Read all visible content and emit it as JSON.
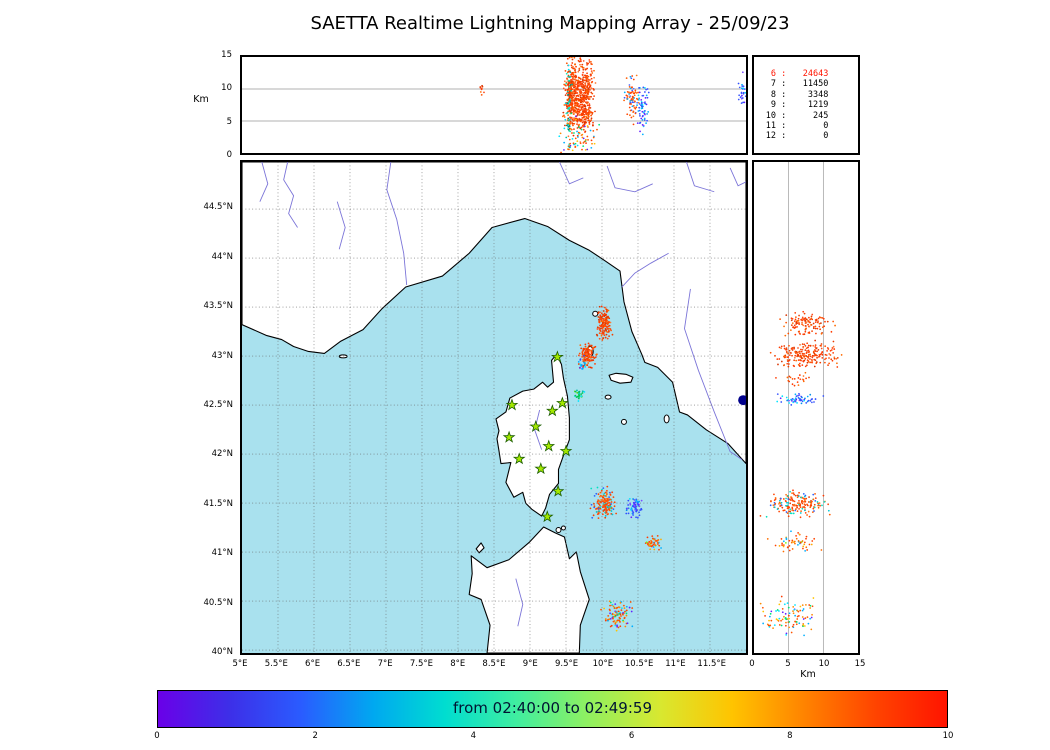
{
  "title": "SAETTA Realtime Lightning Mapping Array - 25/09/23",
  "axes": {
    "km_label": "Km",
    "alt_ticks": [
      "0",
      "5",
      "10",
      "15"
    ],
    "lat_ticks": [
      "44.5°N",
      "44°N",
      "43.5°N",
      "43°N",
      "42.5°N",
      "42°N",
      "41.5°N",
      "41°N",
      "40.5°N",
      "40°N"
    ],
    "lon_ticks": [
      "5°E",
      "5.5°E",
      "6°E",
      "6.5°E",
      "7°E",
      "7.5°E",
      "8°E",
      "8.5°E",
      "9°E",
      "9.5°E",
      "10°E",
      "10.5°E",
      "11°E",
      "11.5°E"
    ]
  },
  "legend": {
    "rows": [
      {
        "level": "6",
        "value": "24643",
        "color": "#ff1400"
      },
      {
        "level": "7",
        "value": "11450",
        "color": "#000000"
      },
      {
        "level": "8",
        "value": "3348",
        "color": "#000000"
      },
      {
        "level": "9",
        "value": "1219",
        "color": "#000000"
      },
      {
        "level": "10",
        "value": "245",
        "color": "#000000"
      },
      {
        "level": "11",
        "value": "0",
        "color": "#000000"
      },
      {
        "level": "12",
        "value": "0",
        "color": "#000000"
      }
    ]
  },
  "colorbar": {
    "label": "from 02:40:00 to 02:49:59",
    "label_color": "#001433",
    "ticks": [
      "0",
      "2",
      "4",
      "6",
      "8",
      "10"
    ],
    "gradient": [
      "#6a00e8",
      "#3d2fe8",
      "#2a5cff",
      "#00a8f0",
      "#00ddd0",
      "#40eea0",
      "#90f060",
      "#d8e830",
      "#ffc400",
      "#ff8400",
      "#ff4400",
      "#ff1400"
    ]
  },
  "map": {
    "sea_color": "#a9e1ee",
    "land_color": "#ffffff",
    "river_color": "#7b74d8",
    "station_color": "#a4e800",
    "station_edge": "#1a5c00"
  },
  "chart_data": {
    "type": "scatter",
    "axes": {
      "lon_range_deg_e": [
        5,
        12
      ],
      "lat_range_deg_n": [
        39.97,
        44.98
      ],
      "alt_range_km": [
        0,
        15
      ],
      "colorbar_value_range": [
        0,
        10
      ]
    },
    "palettes": {
      "hot": [
        "#ff3b00",
        "#ff5200",
        "#f04000",
        "#ff6a00",
        "#e83a00",
        "#ff4d1a",
        "#d93400",
        "#ff7a33"
      ],
      "hotcyan": [
        "#ff4400",
        "#ff5c00",
        "#f04000",
        "#ff7a1a",
        "#00c8d4",
        "#00e0c0",
        "#2962ff",
        "#ff3b00"
      ],
      "hotblue": [
        "#ff4400",
        "#ff5c00",
        "#ff7a1a",
        "#3d5afe",
        "#536dfe",
        "#00b0ff"
      ],
      "hotmix": [
        "#ff4400",
        "#ff6d00",
        "#ffab00",
        "#00b0ff",
        "#76ff03",
        "#ff3b00"
      ],
      "cool": [
        "#304ffe",
        "#3d5afe",
        "#00b0ff",
        "#651fff",
        "#00e5ff",
        "#7c4dff",
        "#0091ea"
      ],
      "teal": [
        "#00bfa5",
        "#1de9b6",
        "#00e5ff",
        "#00897b",
        "#00d0b0"
      ],
      "tealgreen": [
        "#00c853",
        "#64dd17",
        "#00bfa5",
        "#00e5ff",
        "#40e060"
      ],
      "mixed": [
        "#ff5500",
        "#ff8800",
        "#00b0ff",
        "#00e676",
        "#651fff",
        "#ffc400",
        "#00e5ff",
        "#ff3b00"
      ]
    },
    "top_clusters": [
      {
        "lon": 9.6,
        "slon": 0.055,
        "alt": 9.0,
        "salt": 2.6,
        "n": 420,
        "pal": "hot"
      },
      {
        "lon": 9.77,
        "slon": 0.05,
        "alt": 8.5,
        "salt": 2.8,
        "n": 360,
        "pal": "hot"
      },
      {
        "lon": 9.54,
        "slon": 0.018,
        "alt": 7.0,
        "salt": 3.5,
        "n": 55,
        "pal": "teal"
      },
      {
        "lon": 9.68,
        "slon": 0.13,
        "alt": 2.5,
        "salt": 1.6,
        "n": 70,
        "pal": "mixed"
      },
      {
        "lon": 10.42,
        "slon": 0.05,
        "alt": 8.6,
        "salt": 1.7,
        "n": 85,
        "pal": "hotblue"
      },
      {
        "lon": 10.56,
        "slon": 0.04,
        "alt": 7.4,
        "salt": 1.9,
        "n": 65,
        "pal": "cool"
      },
      {
        "lon": 8.33,
        "slon": 0.015,
        "alt": 10.0,
        "salt": 0.6,
        "n": 9,
        "pal": "hot"
      },
      {
        "lon": 11.95,
        "slon": 0.03,
        "alt": 9.5,
        "salt": 1.1,
        "n": 28,
        "pal": "cool"
      }
    ],
    "map_clusters": [
      {
        "lon": 10.03,
        "lat": 43.33,
        "slon": 0.045,
        "slat": 0.075,
        "n": 150,
        "pal": "hot"
      },
      {
        "lon": 9.8,
        "lat": 43.01,
        "slon": 0.05,
        "slat": 0.055,
        "n": 130,
        "pal": "hot"
      },
      {
        "lon": 9.73,
        "lat": 42.92,
        "slon": 0.03,
        "slat": 0.03,
        "n": 18,
        "pal": "cool"
      },
      {
        "lon": 9.67,
        "lat": 42.6,
        "slon": 0.045,
        "slat": 0.03,
        "n": 28,
        "pal": "tealgreen"
      },
      {
        "lon": 10.02,
        "lat": 41.5,
        "slon": 0.07,
        "slat": 0.07,
        "n": 160,
        "pal": "hotcyan"
      },
      {
        "lon": 10.45,
        "lat": 41.46,
        "slon": 0.055,
        "slat": 0.05,
        "n": 65,
        "pal": "cool"
      },
      {
        "lon": 10.7,
        "lat": 41.1,
        "slon": 0.05,
        "slat": 0.04,
        "n": 45,
        "pal": "hotmix"
      },
      {
        "lon": 10.22,
        "lat": 40.33,
        "slon": 0.1,
        "slat": 0.08,
        "n": 100,
        "pal": "mixed"
      }
    ],
    "right_clusters": [
      {
        "lat": 43.33,
        "slat": 0.05,
        "alt": 7.5,
        "salt": 1.7,
        "n": 120,
        "pal": "hot"
      },
      {
        "lat": 43.01,
        "slat": 0.06,
        "alt": 7.5,
        "salt": 2.0,
        "n": 210,
        "pal": "hot"
      },
      {
        "lat": 42.76,
        "slat": 0.03,
        "alt": 6.0,
        "salt": 1.2,
        "n": 22,
        "pal": "hot"
      },
      {
        "lat": 42.56,
        "slat": 0.03,
        "alt": 6.5,
        "salt": 1.4,
        "n": 55,
        "pal": "cool"
      },
      {
        "lat": 41.49,
        "slat": 0.055,
        "alt": 6.5,
        "salt": 2.0,
        "n": 180,
        "pal": "hotcyan"
      },
      {
        "lat": 41.1,
        "slat": 0.04,
        "alt": 6.0,
        "salt": 1.5,
        "n": 55,
        "pal": "hotmix"
      },
      {
        "lat": 40.34,
        "slat": 0.09,
        "alt": 5.0,
        "salt": 2.0,
        "n": 100,
        "pal": "mixed"
      }
    ],
    "stations_lonlat": [
      [
        9.38,
        42.99
      ],
      [
        8.75,
        42.5
      ],
      [
        9.31,
        42.44
      ],
      [
        9.45,
        42.52
      ],
      [
        9.08,
        42.28
      ],
      [
        8.71,
        42.17
      ],
      [
        9.26,
        42.08
      ],
      [
        9.5,
        42.03
      ],
      [
        9.15,
        41.85
      ],
      [
        8.85,
        41.95
      ],
      [
        9.39,
        41.62
      ],
      [
        9.24,
        41.36
      ]
    ],
    "special_marker": {
      "lon": 11.96,
      "lat": 42.55,
      "color": "#00008b"
    }
  }
}
